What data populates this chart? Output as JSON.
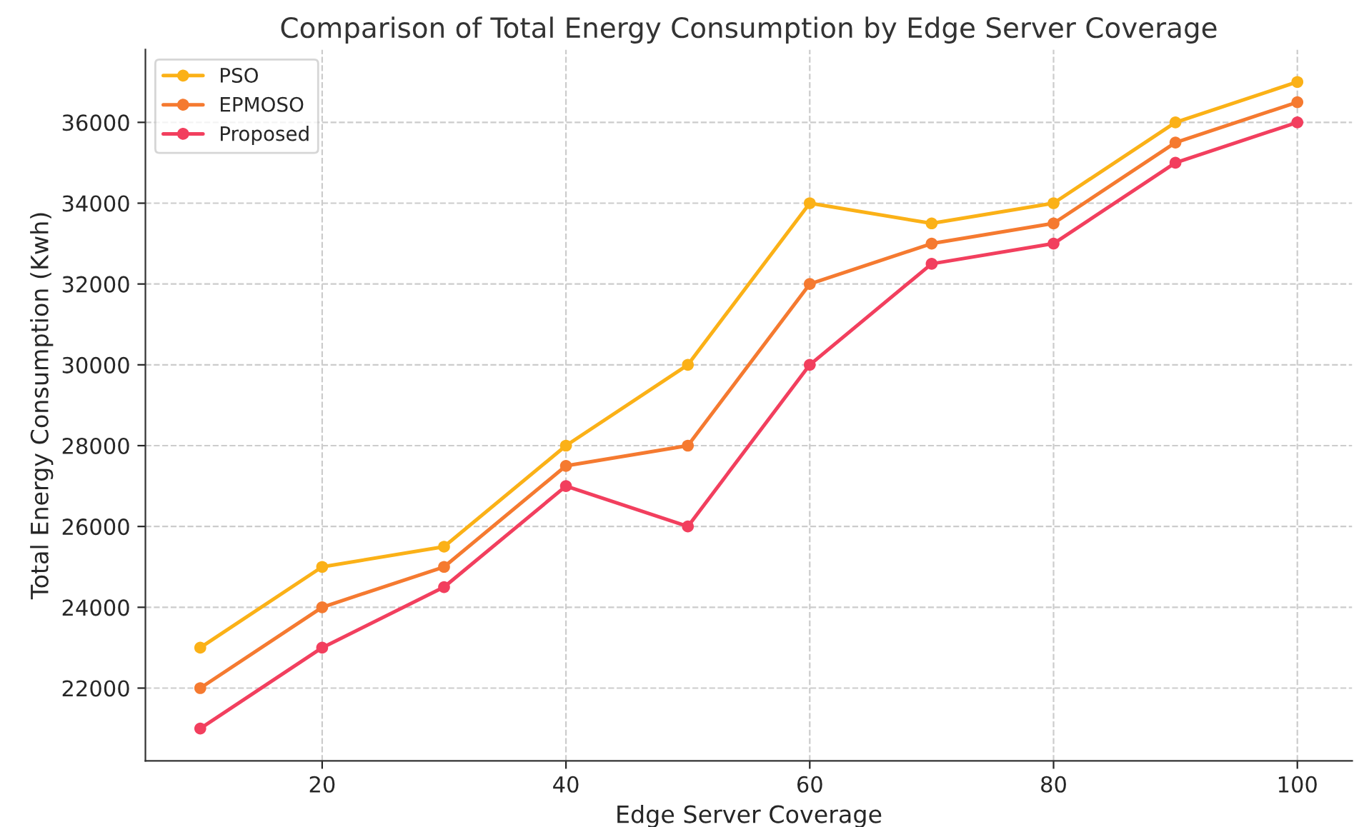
{
  "chart_data": {
    "type": "line",
    "title": "Comparison of Total Energy Consumption by Edge Server Coverage",
    "xlabel": "Edge Server Coverage",
    "ylabel": "Total Energy Consumption (Kwh)",
    "x": [
      10,
      20,
      30,
      40,
      50,
      60,
      70,
      80,
      90,
      100
    ],
    "series": [
      {
        "name": "PSO",
        "color": "#fbb117",
        "values": [
          23000,
          25000,
          25500,
          28000,
          30000,
          34000,
          33500,
          34000,
          36000,
          37000
        ]
      },
      {
        "name": "EPMOSO",
        "color": "#f57a30",
        "values": [
          22000,
          24000,
          25000,
          27500,
          28000,
          32000,
          33000,
          33500,
          35500,
          36500
        ]
      },
      {
        "name": "Proposed",
        "color": "#f23f5e",
        "values": [
          21000,
          23000,
          24500,
          27000,
          26000,
          30000,
          32500,
          33000,
          35000,
          36000
        ]
      }
    ],
    "xlim": [
      5.5,
      104.5
    ],
    "xticks": [
      20,
      40,
      60,
      80,
      100
    ],
    "ylim": [
      20200,
      37800
    ],
    "yticks": [
      22000,
      24000,
      26000,
      28000,
      30000,
      32000,
      34000,
      36000
    ],
    "grid": true,
    "legend": "top left",
    "marker": "circle",
    "line_style": "solid"
  }
}
